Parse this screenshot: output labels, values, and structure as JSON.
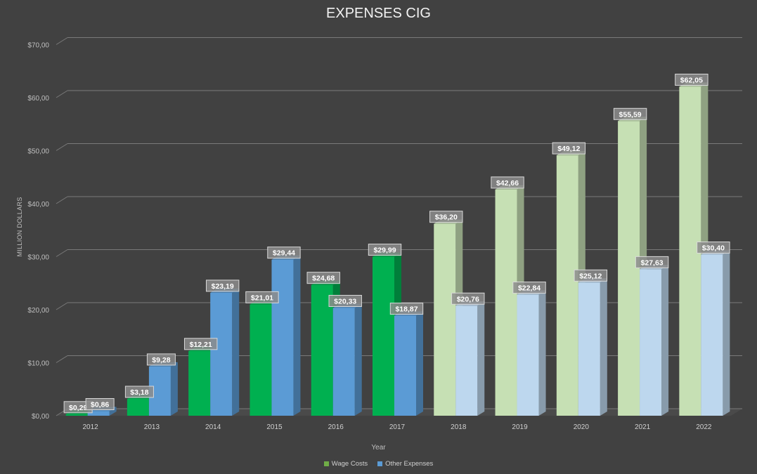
{
  "chart_data": {
    "type": "bar",
    "title": "EXPENSES CIG",
    "xlabel": "Year",
    "ylabel": "MILLION DOLLARS",
    "ylim": [
      0,
      70
    ],
    "yticks": [
      "$0,00",
      "$10,00",
      "$20,00",
      "$30,00",
      "$40,00",
      "$50,00",
      "$60,00",
      "$70,00"
    ],
    "grid": true,
    "legend_position": "bottom",
    "categories": [
      "2012",
      "2013",
      "2014",
      "2015",
      "2016",
      "2017",
      "2018",
      "2019",
      "2020",
      "2021",
      "2022"
    ],
    "series": [
      {
        "name": "Wage Costs",
        "values": [
          0.29,
          3.18,
          12.21,
          21.01,
          24.68,
          29.99,
          36.2,
          42.66,
          49.12,
          55.59,
          62.05
        ],
        "labels": [
          "$0,29",
          "$3,18",
          "$12,21",
          "$21,01",
          "$24,68",
          "$29,99",
          "$36,20",
          "$42,66",
          "$49,12",
          "$55,59",
          "$62,05"
        ],
        "color": "#00b050",
        "projected_color": "#c6e0b4"
      },
      {
        "name": "Other Expenses",
        "values": [
          0.86,
          9.28,
          23.19,
          29.44,
          20.33,
          18.87,
          20.76,
          22.84,
          25.12,
          27.63,
          30.4
        ],
        "labels": [
          "$0,86",
          "$9,28",
          "$23,19",
          "$29,44",
          "$20,33",
          "$18,87",
          "$20,76",
          "$22,84",
          "$25,12",
          "$27,63",
          "$30,40"
        ],
        "color": "#5b9bd5",
        "projected_color": "#bdd7ee"
      }
    ],
    "projected_from_index": 6
  }
}
